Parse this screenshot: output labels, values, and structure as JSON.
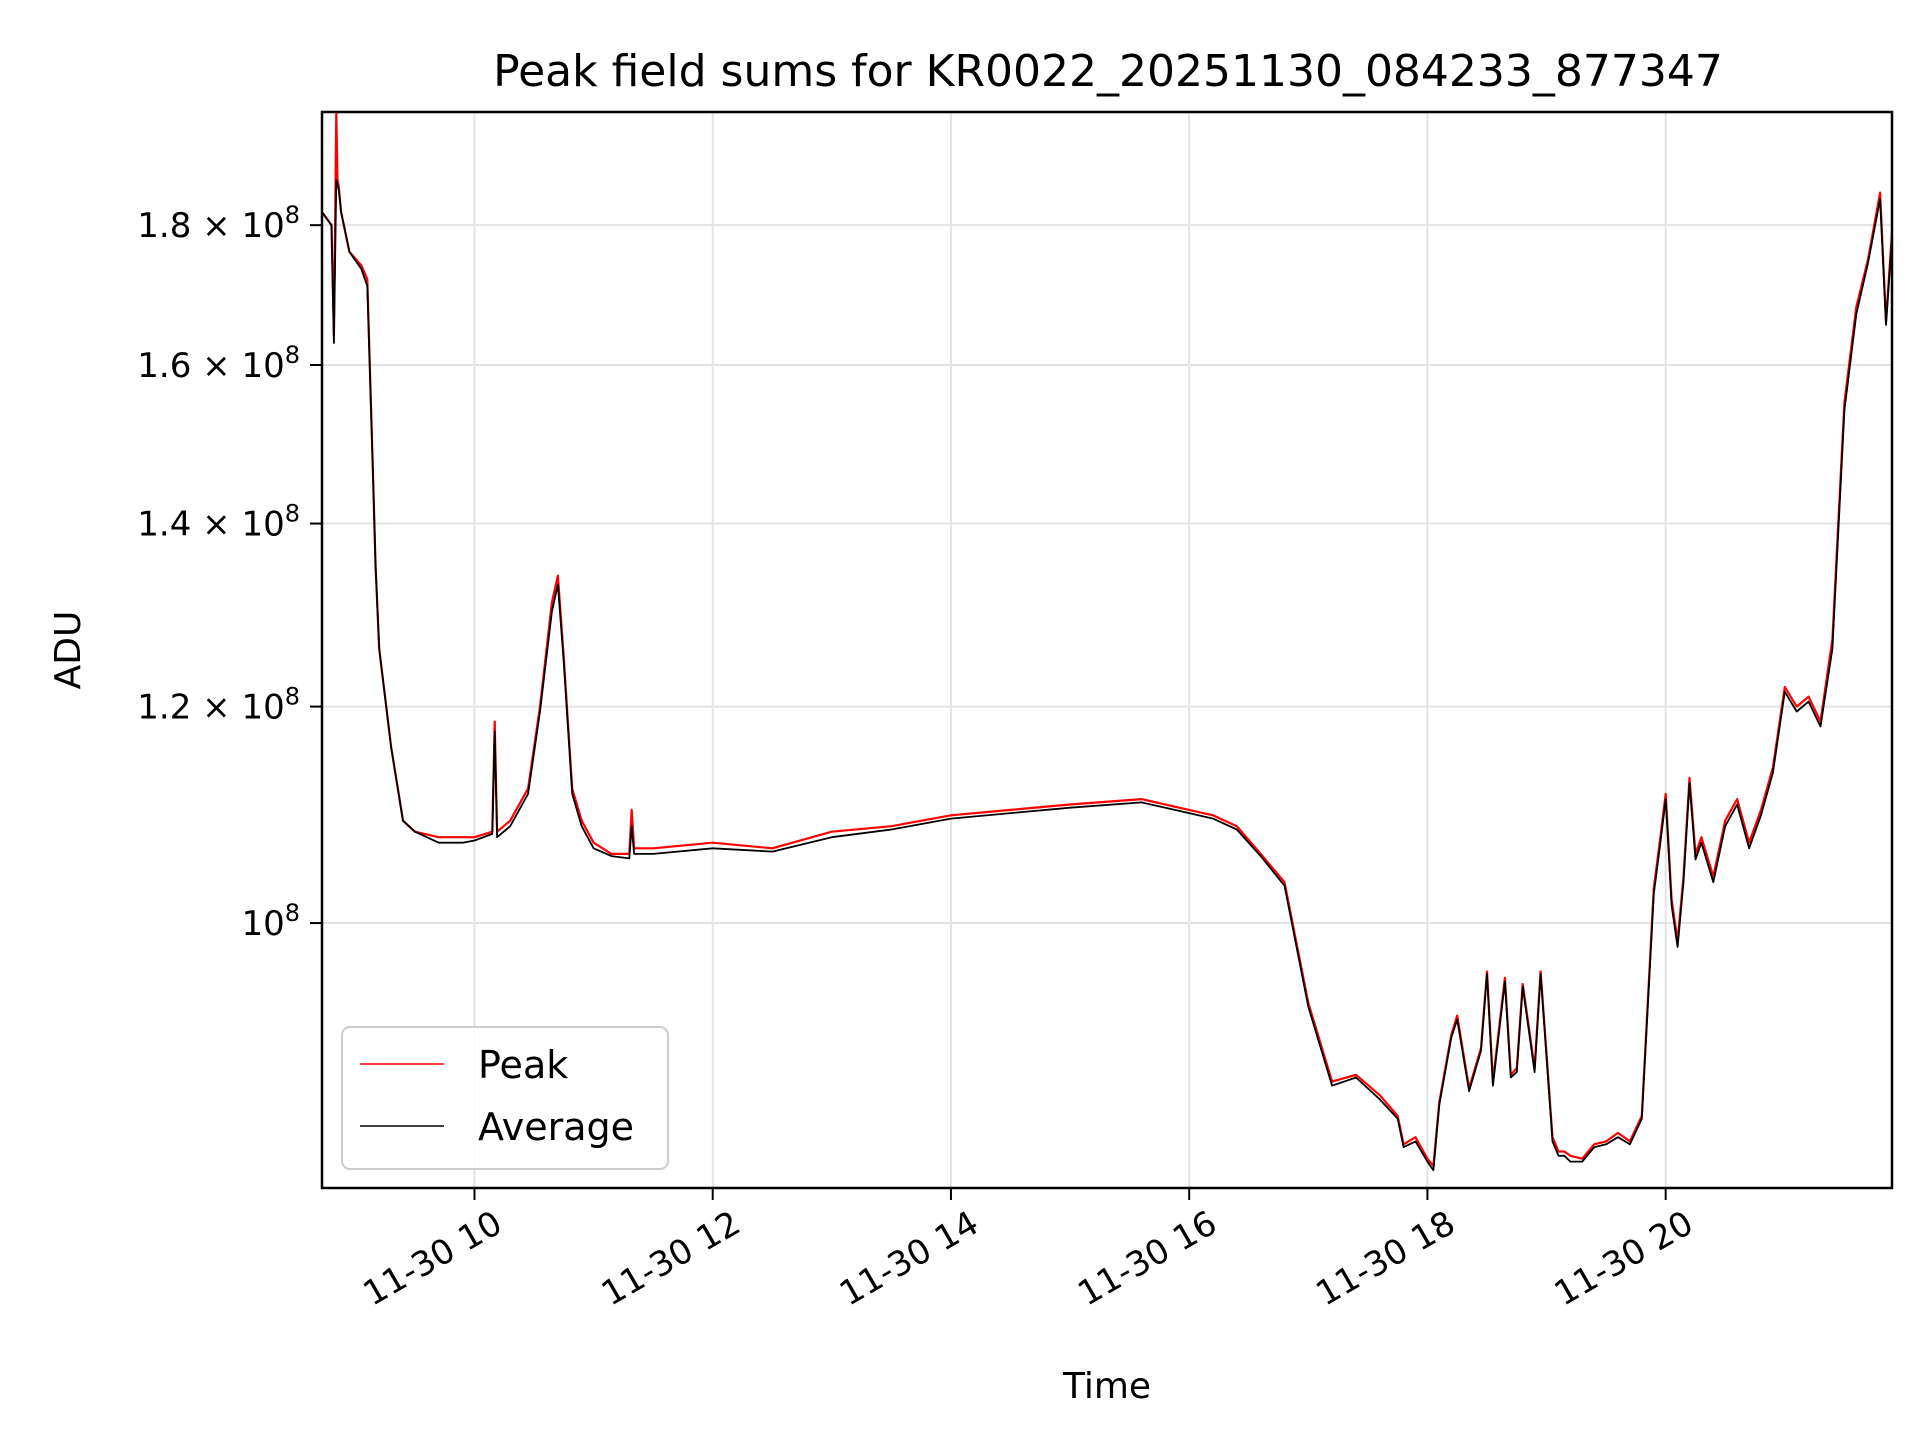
{
  "chart_data": {
    "type": "line",
    "title": "Peak field sums for KR0022_20251130_084233_877347",
    "xlabel": "Time",
    "ylabel": "ADU",
    "xlim": [
      8.72,
      21.9
    ],
    "ylim": [
      80000000.0,
      198000000.0
    ],
    "y_scale": "log",
    "grid": true,
    "legend_position": "lower-left",
    "x_ticks": [
      {
        "value": 10,
        "label": "11-30 10"
      },
      {
        "value": 12,
        "label": "11-30 12"
      },
      {
        "value": 14,
        "label": "11-30 14"
      },
      {
        "value": 16,
        "label": "11-30 16"
      },
      {
        "value": 18,
        "label": "11-30 18"
      },
      {
        "value": 20,
        "label": "11-30 20"
      }
    ],
    "y_ticks": [
      {
        "value": 100000000,
        "mantissa": "",
        "exponent": "8"
      },
      {
        "value": 120000000,
        "mantissa": "1.2",
        "exponent": "8"
      },
      {
        "value": 140000000,
        "mantissa": "1.4",
        "exponent": "8"
      },
      {
        "value": 160000000,
        "mantissa": "1.6",
        "exponent": "8"
      },
      {
        "value": 180000000,
        "mantissa": "1.8",
        "exponent": "8"
      }
    ],
    "tick_times_symbol": "×",
    "tick_base": "10",
    "series": [
      {
        "name": "Peak",
        "color": "#ff0000",
        "x": [
          8.72,
          8.8,
          8.82,
          8.84,
          8.85,
          8.86,
          8.88,
          8.95,
          9.05,
          9.1,
          9.15,
          9.17,
          9.2,
          9.3,
          9.4,
          9.5,
          9.7,
          9.9,
          10.0,
          10.15,
          10.17,
          10.19,
          10.3,
          10.45,
          10.55,
          10.65,
          10.7,
          10.75,
          10.82,
          10.9,
          11.0,
          11.15,
          11.3,
          11.32,
          11.34,
          11.5,
          12.0,
          12.5,
          13.0,
          13.5,
          14.0,
          14.5,
          15.0,
          15.6,
          16.0,
          16.2,
          16.4,
          16.6,
          16.8,
          17.0,
          17.2,
          17.4,
          17.6,
          17.75,
          17.8,
          17.9,
          18.0,
          18.05,
          18.1,
          18.2,
          18.25,
          18.35,
          18.45,
          18.5,
          18.55,
          18.65,
          18.7,
          18.75,
          18.8,
          18.9,
          18.95,
          19.05,
          19.1,
          19.15,
          19.2,
          19.3,
          19.4,
          19.5,
          19.6,
          19.7,
          19.8,
          19.9,
          19.95,
          20.0,
          20.05,
          20.1,
          20.15,
          20.2,
          20.25,
          20.3,
          20.4,
          20.5,
          20.6,
          20.7,
          20.8,
          20.9,
          21.0,
          21.1,
          21.2,
          21.3,
          21.4,
          21.5,
          21.6,
          21.7,
          21.8,
          21.85,
          21.9
        ],
        "values": [
          182000000.0,
          180000000.0,
          164000000.0,
          198000000.0,
          187000000.0,
          186000000.0,
          182000000.0,
          176000000.0,
          174000000.0,
          172000000.0,
          145000000.0,
          135000000.0,
          126000000.0,
          116000000.0,
          109000000.0,
          108000000.0,
          107500000.0,
          107500000.0,
          107500000.0,
          108000000.0,
          118500000.0,
          108000000.0,
          109000000.0,
          112000000.0,
          120000000.0,
          131000000.0,
          134000000.0,
          125000000.0,
          112000000.0,
          109000000.0,
          107000000.0,
          106000000.0,
          106000000.0,
          110000000.0,
          106500000.0,
          106500000.0,
          107000000.0,
          106500000.0,
          108000000.0,
          108500000.0,
          109500000.0,
          110000000.0,
          110500000.0,
          111000000.0,
          110000000.0,
          109500000.0,
          108500000.0,
          106000000.0,
          103500000.0,
          93500000.0,
          87500000.0,
          88000000.0,
          86500000.0,
          85000000.0,
          83000000.0,
          83500000.0,
          82000000.0,
          81500000.0,
          86000000.0,
          91000000.0,
          92500000.0,
          87000000.0,
          90000000.0,
          96000000.0,
          87500000.0,
          95500000.0,
          88000000.0,
          88500000.0,
          95000000.0,
          88500000.0,
          96000000.0,
          83500000.0,
          82500000.0,
          82500000.0,
          82200000.0,
          82000000.0,
          83000000.0,
          83200000.0,
          83800000.0,
          83200000.0,
          85000000.0,
          103000000.0,
          107000000.0,
          111500000.0,
          102000000.0,
          98500000.0,
          104000000.0,
          113000000.0,
          106000000.0,
          107500000.0,
          104000000.0,
          109000000.0,
          111000000.0,
          107000000.0,
          110000000.0,
          114000000.0,
          122000000.0,
          120000000.0,
          121000000.0,
          118500000.0,
          127000000.0,
          155000000.0,
          168000000.0,
          175000000.0,
          185000000.0,
          166000000.0,
          179000000.0
        ]
      },
      {
        "name": "Average",
        "color": "#000000",
        "x": [
          8.72,
          8.8,
          8.82,
          8.84,
          8.86,
          8.88,
          8.95,
          9.05,
          9.1,
          9.15,
          9.17,
          9.2,
          9.3,
          9.4,
          9.5,
          9.7,
          9.9,
          10.0,
          10.15,
          10.17,
          10.19,
          10.3,
          10.45,
          10.55,
          10.65,
          10.7,
          10.75,
          10.82,
          10.9,
          11.0,
          11.15,
          11.3,
          11.32,
          11.34,
          11.5,
          12.0,
          12.5,
          13.0,
          13.5,
          14.0,
          14.5,
          15.0,
          15.6,
          16.0,
          16.2,
          16.4,
          16.6,
          16.8,
          17.0,
          17.2,
          17.4,
          17.6,
          17.75,
          17.8,
          17.9,
          18.0,
          18.05,
          18.1,
          18.2,
          18.25,
          18.35,
          18.45,
          18.5,
          18.55,
          18.65,
          18.7,
          18.75,
          18.8,
          18.9,
          18.95,
          19.05,
          19.1,
          19.15,
          19.2,
          19.3,
          19.4,
          19.5,
          19.6,
          19.7,
          19.8,
          19.9,
          19.95,
          20.0,
          20.05,
          20.1,
          20.15,
          20.2,
          20.25,
          20.3,
          20.4,
          20.5,
          20.6,
          20.7,
          20.8,
          20.9,
          21.0,
          21.1,
          21.2,
          21.3,
          21.4,
          21.5,
          21.6,
          21.7,
          21.8,
          21.85,
          21.9
        ],
        "values": [
          182000000.0,
          180000000.0,
          163000000.0,
          187000000.0,
          185500000.0,
          182000000.0,
          176000000.0,
          173500000.0,
          171000000.0,
          145000000.0,
          135000000.0,
          126000000.0,
          116000000.0,
          109000000.0,
          108000000.0,
          107000000.0,
          107000000.0,
          107200000.0,
          107800000.0,
          117500000.0,
          107500000.0,
          108500000.0,
          111500000.0,
          119500000.0,
          130000000.0,
          133000000.0,
          124500000.0,
          111500000.0,
          108500000.0,
          106500000.0,
          105800000.0,
          105600000.0,
          108500000.0,
          106000000.0,
          106000000.0,
          106500000.0,
          106200000.0,
          107500000.0,
          108200000.0,
          109200000.0,
          109700000.0,
          110200000.0,
          110700000.0,
          109700000.0,
          109200000.0,
          108200000.0,
          105800000.0,
          103200000.0,
          93200000.0,
          87200000.0,
          87800000.0,
          86200000.0,
          84800000.0,
          82800000.0,
          83200000.0,
          81800000.0,
          81200000.0,
          85800000.0,
          90800000.0,
          92200000.0,
          86800000.0,
          89800000.0,
          95800000.0,
          87200000.0,
          95200000.0,
          87800000.0,
          88200000.0,
          94800000.0,
          88200000.0,
          95800000.0,
          83200000.0,
          82200000.0,
          82200000.0,
          81800000.0,
          81800000.0,
          82800000.0,
          83000000.0,
          83500000.0,
          83000000.0,
          84800000.0,
          102500000.0,
          106500000.0,
          111000000.0,
          101500000.0,
          98000000.0,
          103500000.0,
          112500000.0,
          105500000.0,
          107000000.0,
          103500000.0,
          108500000.0,
          110500000.0,
          106500000.0,
          109500000.0,
          113500000.0,
          121500000.0,
          119500000.0,
          120500000.0,
          118000000.0,
          126000000.0,
          154000000.0,
          167000000.0,
          174500000.0,
          184000000.0,
          165500000.0,
          178000000.0
        ]
      }
    ]
  }
}
